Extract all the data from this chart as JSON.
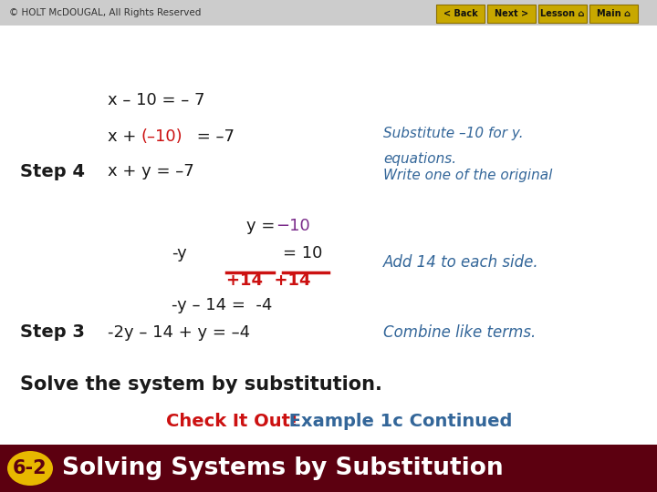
{
  "bg_color": "#ffffff",
  "header_bg": "#5C0010",
  "header_text": "Solving Systems by Substitution",
  "header_badge": "6-2",
  "header_badge_bg": "#E8B800",
  "header_text_color": "#ffffff",
  "subtitle_red": "Check It Out!",
  "subtitle_blue": " Example 1c Continued",
  "subtitle_red_color": "#CC1111",
  "subtitle_blue_color": "#336699",
  "main_instruction": "Solve the system by substitution.",
  "main_instruction_color": "#1a1a1a",
  "step3_label": "Step 3",
  "step4_label": "Step 4",
  "step_color": "#1a1a1a",
  "eq_color": "#1a1a1a",
  "red_color": "#CC1111",
  "purple_color": "#7B2D8B",
  "blue_italic_color": "#336699",
  "footer_bg": "#cccccc",
  "footer_text": "© HOLT McDOUGAL, All Rights Reserved",
  "footer_text_color": "#333333",
  "nav_bg": "#C8A800",
  "nav_text_color": "#111111"
}
